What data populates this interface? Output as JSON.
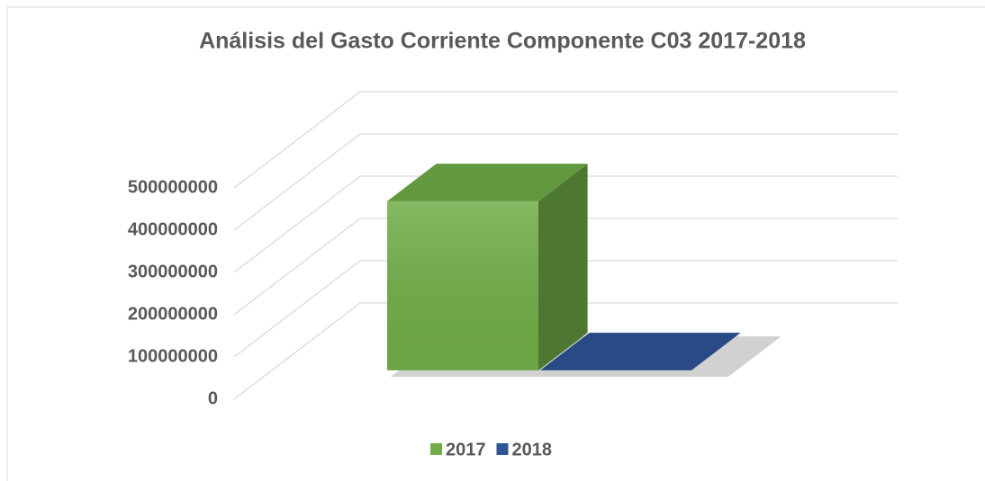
{
  "chart_data": {
    "type": "bar3d",
    "title": "Análisis del Gasto Corriente Componente C03 2017-2018",
    "series": [
      {
        "name": "2017",
        "color": "#70ad47",
        "values": [
          400000000
        ]
      },
      {
        "name": "2018",
        "color": "#2f5597",
        "values": [
          0
        ]
      }
    ],
    "ylim": [
      0,
      500000000
    ],
    "yticks": [
      0,
      100000000,
      200000000,
      300000000,
      400000000,
      500000000
    ],
    "grid": true,
    "legend": "bottom"
  }
}
